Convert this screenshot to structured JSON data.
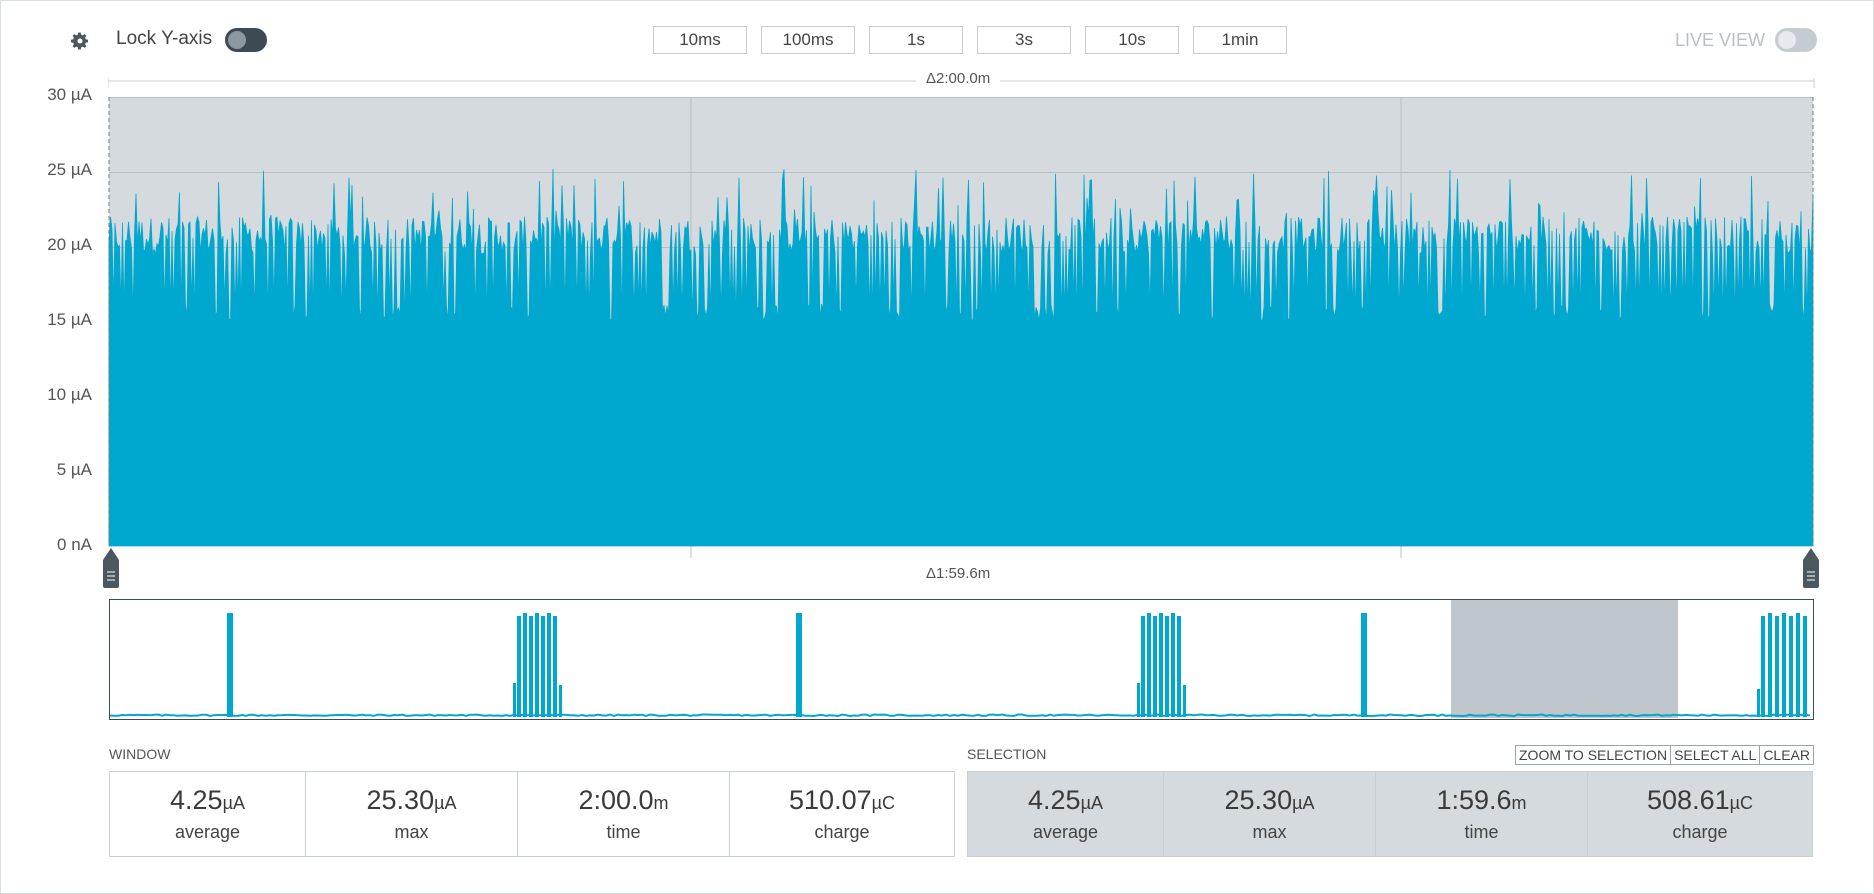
{
  "toolbar": {
    "lock_label": "Lock Y-axis",
    "time_buttons": [
      "10ms",
      "100ms",
      "1s",
      "3s",
      "10s",
      "1min"
    ],
    "live_view_label": "LIVE VIEW"
  },
  "chart": {
    "top_delta": "Δ2:00.0m",
    "bottom_delta": "Δ1:59.6m",
    "y_ticks": [
      "30 µA",
      "25 µA",
      "20 µA",
      "15 µA",
      "10 µA",
      "5 µA",
      "0 nA"
    ]
  },
  "chart_data": {
    "type": "area",
    "ylim": [
      0,
      30
    ],
    "y_unit": "µA",
    "grid": true,
    "description_values": {
      "baseline_min": 15,
      "baseline_max": 21,
      "spike_max": 25.3
    }
  },
  "colors": {
    "signal": "#00a7cf",
    "chart_bg": "#d4dadd",
    "grid": "#b7bfc4"
  },
  "window": {
    "label": "WINDOW",
    "stats": [
      {
        "value": "4.25",
        "unit": "µA",
        "caption": "average"
      },
      {
        "value": "25.30",
        "unit": "µA",
        "caption": "max"
      },
      {
        "value": "2:00.0",
        "unit": "m",
        "caption": "time"
      },
      {
        "value": "510.07",
        "unit": "µC",
        "caption": "charge"
      }
    ]
  },
  "selection": {
    "label": "SELECTION",
    "buttons": [
      "ZOOM TO SELECTION",
      "SELECT ALL",
      "CLEAR"
    ],
    "stats": [
      {
        "value": "4.25",
        "unit": "µA",
        "caption": "average"
      },
      {
        "value": "25.30",
        "unit": "µA",
        "caption": "max"
      },
      {
        "value": "1:59.6",
        "unit": "m",
        "caption": "time"
      },
      {
        "value": "508.61",
        "unit": "µC",
        "caption": "charge"
      }
    ]
  }
}
